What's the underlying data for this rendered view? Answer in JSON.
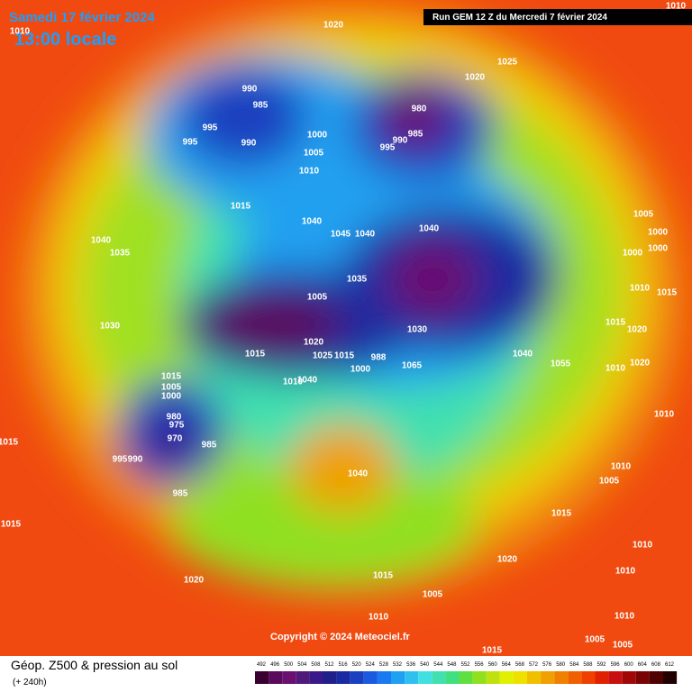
{
  "header": {
    "date": "Samedi 17 février 2024",
    "time": "13:00 locale",
    "run": "Run GEM 12 Z du Mercredi 7 février 2024"
  },
  "footer": {
    "title": "Géop. Z500 & pression au sol",
    "subtitle": "(+ 240h)",
    "copyright": "Copyright © 2024 Meteociel.fr"
  },
  "legend": {
    "ticks": [
      492,
      496,
      500,
      504,
      508,
      512,
      516,
      520,
      524,
      528,
      532,
      536,
      540,
      544,
      548,
      552,
      556,
      560,
      564,
      568,
      572,
      576,
      580,
      584,
      588,
      592,
      596,
      600,
      604,
      608,
      612
    ],
    "colors": [
      "#3a0030",
      "#5a0a5a",
      "#6a1070",
      "#501a7a",
      "#3a1a8a",
      "#20208a",
      "#1a2aa0",
      "#1a40c0",
      "#1a5ae0",
      "#1a78f0",
      "#20a0f0",
      "#30c0f0",
      "#40e0e0",
      "#40e0b0",
      "#40e080",
      "#60e040",
      "#90e020",
      "#c0e010",
      "#e0f000",
      "#f0e000",
      "#f0c000",
      "#f0a000",
      "#f08000",
      "#f06000",
      "#f04000",
      "#e02000",
      "#c81010",
      "#a00808",
      "#780404",
      "#500000",
      "#200000"
    ]
  },
  "map": {
    "labels": [
      "1010",
      "1020",
      "1025",
      "1020",
      "990",
      "985",
      "995",
      "990",
      "995",
      "1000",
      "980",
      "985",
      "990",
      "995",
      "1005",
      "1010",
      "1015",
      "1040",
      "1045",
      "1040",
      "1040",
      "1005",
      "1000",
      "1000",
      "1000",
      "1040",
      "1035",
      "1035",
      "1010",
      "1015",
      "1005",
      "1015",
      "1020",
      "1030",
      "1030",
      "1020",
      "1015",
      "1025",
      "1015",
      "1040",
      "1055",
      "1010",
      "1020",
      "988",
      "1000",
      "1065",
      "1015",
      "1005",
      "1000",
      "1040",
      "1010",
      "980",
      "975",
      "970",
      "985",
      "995",
      "990",
      "985",
      "1010",
      "1015",
      "1040",
      "1010",
      "1005",
      "1015",
      "1015",
      "1010",
      "1010",
      "1020",
      "1015",
      "1005",
      "1020",
      "1010",
      "1010",
      "1005",
      "1005",
      "1015",
      "1010"
    ]
  }
}
